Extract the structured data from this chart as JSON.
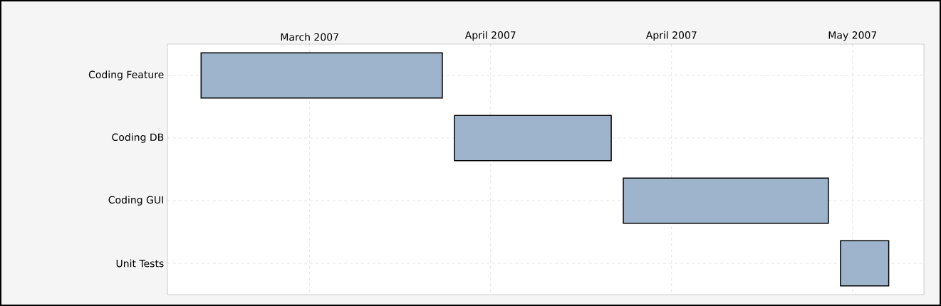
{
  "chart_data": {
    "type": "bar",
    "orientation": "horizontal",
    "categories": [
      "Coding Feature",
      "Coding DB",
      "Coding GUI",
      "Unit Tests"
    ],
    "base": [
      13580,
      13601,
      13615,
      13633
    ],
    "values": [
      20,
      13,
      17,
      4
    ],
    "color": "#9db4cc",
    "xlim": [
      "2007-03-05T05:00",
      "2007-05-06T22:00"
    ],
    "xticks": [
      {
        "value": "2007-03-17",
        "label": "March 2007"
      },
      {
        "value": "2007-04-01",
        "label": "April 2007"
      },
      {
        "value": "2007-04-16",
        "label": "April 2007"
      },
      {
        "value": "2007-05-01",
        "label": "May 2007"
      }
    ],
    "grid": true
  }
}
